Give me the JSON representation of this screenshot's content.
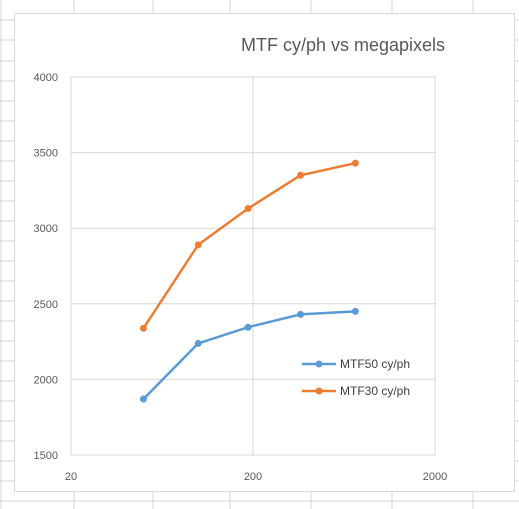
{
  "chart_data": {
    "type": "scatter",
    "title": "MTF cy/ph vs megapixels",
    "xlabel": "",
    "ylabel": "",
    "x_scale": "log",
    "xlim": [
      20,
      2000
    ],
    "ylim": [
      1500,
      4000
    ],
    "x_ticks": [
      "20",
      "200",
      "2000"
    ],
    "y_ticks": [
      "1500",
      "2000",
      "2500",
      "3000",
      "3500",
      "4000"
    ],
    "y_tick_values": [
      1500,
      2000,
      2500,
      3000,
      3500,
      4000
    ],
    "x_tick_values": [
      20,
      200,
      2000
    ],
    "minor_x_gridlines": [],
    "grid": true,
    "legend_position": "right",
    "series": [
      {
        "name": "MTF50 cy/ph",
        "color": "#5b9bd5",
        "x": [
          50,
          100,
          188,
          365,
          730
        ],
        "y": [
          1870,
          2238,
          2345,
          2430,
          2450
        ]
      },
      {
        "name": "MTF30 cy/ph",
        "color": "#ed7d31",
        "x": [
          50,
          100,
          188,
          365,
          730
        ],
        "y": [
          2338,
          2890,
          3130,
          3350,
          3430
        ]
      }
    ]
  }
}
